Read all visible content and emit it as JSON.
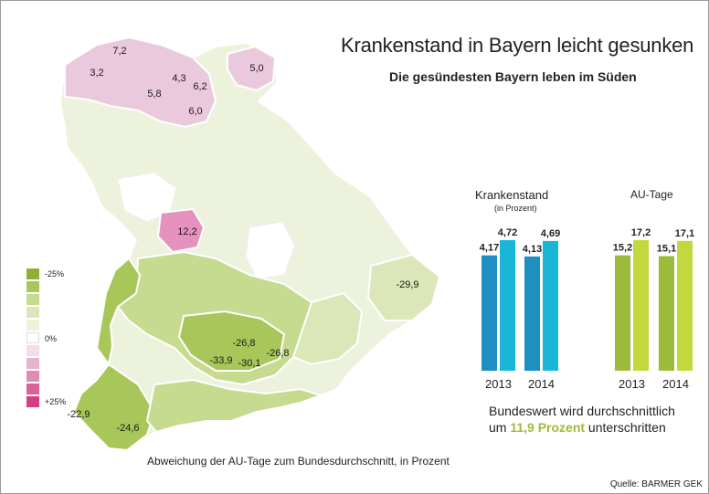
{
  "title": "Krankenstand in Bayern leicht gesunken",
  "subtitle": "Die gesündesten Bayern leben im Süden",
  "map": {
    "caption": "Abweichung der AU-Tage zum Bundesdurchschnitt, in Prozent",
    "labels": [
      "7,2",
      "3,2",
      "4,3",
      "5,0",
      "6,2",
      "5,8",
      "6,0",
      "12,2",
      "-29,9",
      "-26,8",
      "-26,8",
      "-33,9",
      "-30,1",
      "-22,9",
      "-24,6"
    ],
    "legend": {
      "labels": [
        "-25%",
        "0%",
        "+25%"
      ],
      "swatches": [
        "#8db035",
        "#a9c65a",
        "#c6da90",
        "#dbe7b8",
        "#ecf2dc",
        "#ffffff",
        "#f3dde9",
        "#eab3cd",
        "#e08bb2",
        "#d86397",
        "#d1417f"
      ]
    },
    "colors": {
      "neg_strong": "#a9c65a",
      "neg_mid": "#c6da90",
      "neg_light": "#dbe7b8",
      "neg_faint": "#ecf2dc",
      "pos_light": "#ebc9dc",
      "pos_strong": "#e692bf"
    }
  },
  "chart_data": [
    {
      "type": "bar",
      "title": "Krankenstand",
      "subtitle": "(in Prozent)",
      "categories": [
        "2013",
        "2014"
      ],
      "series": [
        {
          "values": [
            4.17,
            4.13
          ],
          "labels": [
            "4,17",
            "4,13"
          ],
          "color": "#1d8fc0"
        },
        {
          "values": [
            4.72,
            4.69
          ],
          "labels": [
            "4,72",
            "4,69"
          ],
          "color": "#1ab6d8"
        }
      ],
      "ylim": [
        0,
        4.72
      ]
    },
    {
      "type": "bar",
      "title": "AU-Tage",
      "categories": [
        "2013",
        "2014"
      ],
      "series": [
        {
          "values": [
            15.2,
            15.1
          ],
          "labels": [
            "15,2",
            "15,1"
          ],
          "color": "#9dbb3a"
        },
        {
          "values": [
            17.2,
            17.1
          ],
          "labels": [
            "17,2",
            "17,1"
          ],
          "color": "#c3d83c"
        }
      ],
      "ylim": [
        0,
        17.2
      ]
    }
  ],
  "note": {
    "line1": "Bundeswert wird durchschnittlich",
    "line2_pre": "um ",
    "line2_highlight": "11,9 Prozent",
    "line2_post": " unterschritten"
  },
  "source": "Quelle: BARMER GEK"
}
